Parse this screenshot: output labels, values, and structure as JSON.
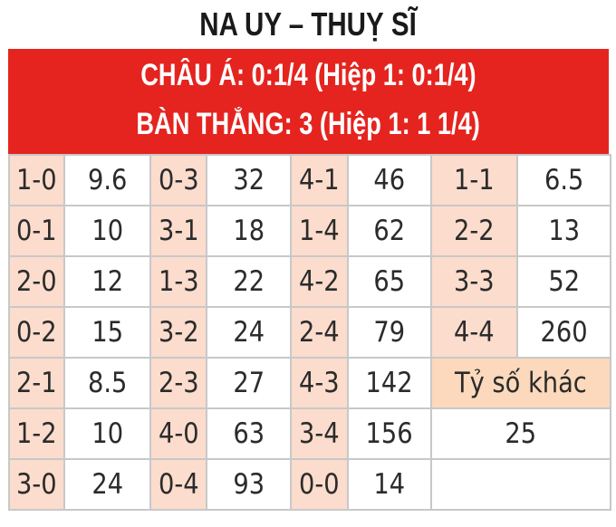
{
  "title": "NA UY – THUỴ SĨ",
  "banner": {
    "line1": "CHÂU Á: 0:1/4 (Hiệp 1: 0:1/4)",
    "line2": "BÀN THẮNG: 3 (Hiệp 1: 1 1/4)"
  },
  "colors": {
    "banner": "#e5241f",
    "score_cell": "#fbdccd",
    "other_cell": "#fcd9bc"
  },
  "rows": [
    [
      {
        "s": "1-0",
        "o": "9.6"
      },
      {
        "s": "0-3",
        "o": "32"
      },
      {
        "s": "4-1",
        "o": "46"
      },
      {
        "s": "1-1",
        "o": "6.5"
      }
    ],
    [
      {
        "s": "0-1",
        "o": "10"
      },
      {
        "s": "3-1",
        "o": "18"
      },
      {
        "s": "1-4",
        "o": "62"
      },
      {
        "s": "2-2",
        "o": "13"
      }
    ],
    [
      {
        "s": "2-0",
        "o": "12"
      },
      {
        "s": "1-3",
        "o": "22"
      },
      {
        "s": "4-2",
        "o": "65"
      },
      {
        "s": "3-3",
        "o": "52"
      }
    ],
    [
      {
        "s": "0-2",
        "o": "15"
      },
      {
        "s": "3-2",
        "o": "24"
      },
      {
        "s": "2-4",
        "o": "79"
      },
      {
        "s": "4-4",
        "o": "260"
      }
    ],
    [
      {
        "s": "2-1",
        "o": "8.5"
      },
      {
        "s": "2-3",
        "o": "27"
      },
      {
        "s": "4-3",
        "o": "142"
      }
    ],
    [
      {
        "s": "1-2",
        "o": "10"
      },
      {
        "s": "4-0",
        "o": "63"
      },
      {
        "s": "3-4",
        "o": "156"
      }
    ],
    [
      {
        "s": "3-0",
        "o": "24"
      },
      {
        "s": "0-4",
        "o": "93"
      },
      {
        "s": "0-0",
        "o": "14"
      }
    ]
  ],
  "other": {
    "label": "Tỷ số khác",
    "odds": "25"
  }
}
